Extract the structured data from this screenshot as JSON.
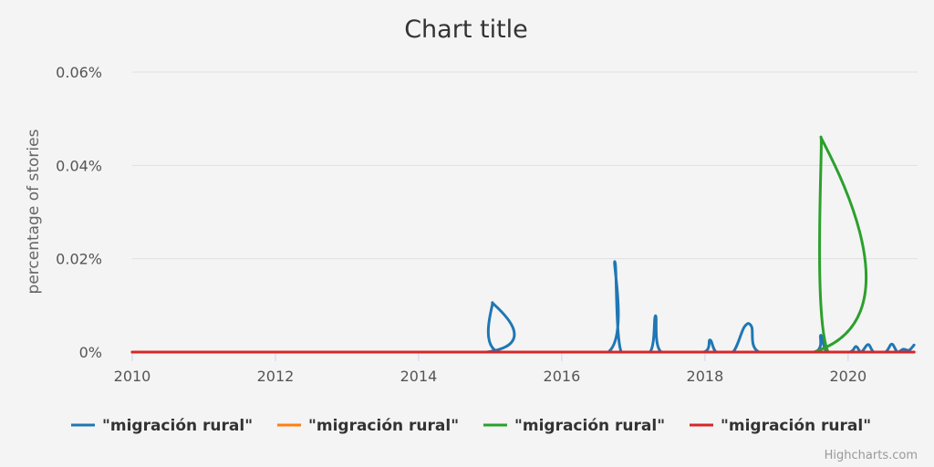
{
  "chart_data": {
    "type": "line",
    "title": "Chart title",
    "ylabel": "percentage of stories",
    "xlabel": "",
    "xlim": [
      2010,
      2020.92
    ],
    "ylim": [
      0,
      0.06
    ],
    "x_ticks": [
      "2010",
      "2012",
      "2014",
      "2016",
      "2018",
      "2020"
    ],
    "y_ticks": [
      "0%",
      "0.02%",
      "0.04%",
      "0.06%"
    ],
    "grid": true,
    "legend": "bottom",
    "series": [
      {
        "name": "\"migración rural\"",
        "color": "#1f77b4",
        "points": [
          [
            2010,
            0
          ],
          [
            2014.95,
            0
          ],
          [
            2015.03,
            0.0106
          ],
          [
            2015.11,
            0
          ],
          [
            2016.65,
            0
          ],
          [
            2016.74,
            0.0194
          ],
          [
            2016.83,
            0
          ],
          [
            2017.23,
            0
          ],
          [
            2017.31,
            0.0078
          ],
          [
            2017.39,
            0
          ],
          [
            2017.98,
            0
          ],
          [
            2018.07,
            0.0026
          ],
          [
            2018.16,
            0
          ],
          [
            2018.39,
            0
          ],
          [
            2018.55,
            0.0054
          ],
          [
            2018.65,
            0.0055
          ],
          [
            2018.76,
            0
          ],
          [
            2019.53,
            0
          ],
          [
            2019.62,
            0.0036
          ],
          [
            2019.71,
            0
          ],
          [
            2020.02,
            0
          ],
          [
            2020.11,
            0.0012
          ],
          [
            2020.18,
            0
          ],
          [
            2020.28,
            0.0016
          ],
          [
            2020.36,
            0
          ],
          [
            2020.52,
            0
          ],
          [
            2020.61,
            0.0017
          ],
          [
            2020.69,
            0
          ],
          [
            2020.77,
            0.0006
          ],
          [
            2020.85,
            0.0004
          ],
          [
            2020.92,
            0.0015
          ]
        ]
      },
      {
        "name": "\"migración rural\"",
        "color": "#ff7f0e",
        "points": [
          [
            2010,
            0
          ],
          [
            2020.92,
            0
          ]
        ]
      },
      {
        "name": "\"migración rural\"",
        "color": "#2ca02c",
        "points": [
          [
            2010,
            0
          ],
          [
            2019.52,
            0
          ],
          [
            2019.62,
            0.0461
          ],
          [
            2019.72,
            0
          ],
          [
            2020.92,
            0
          ]
        ]
      },
      {
        "name": "\"migración rural\"",
        "color": "#d62728",
        "points": [
          [
            2010,
            0
          ],
          [
            2020.92,
            0
          ]
        ]
      }
    ]
  },
  "credits": "Highcharts.com"
}
